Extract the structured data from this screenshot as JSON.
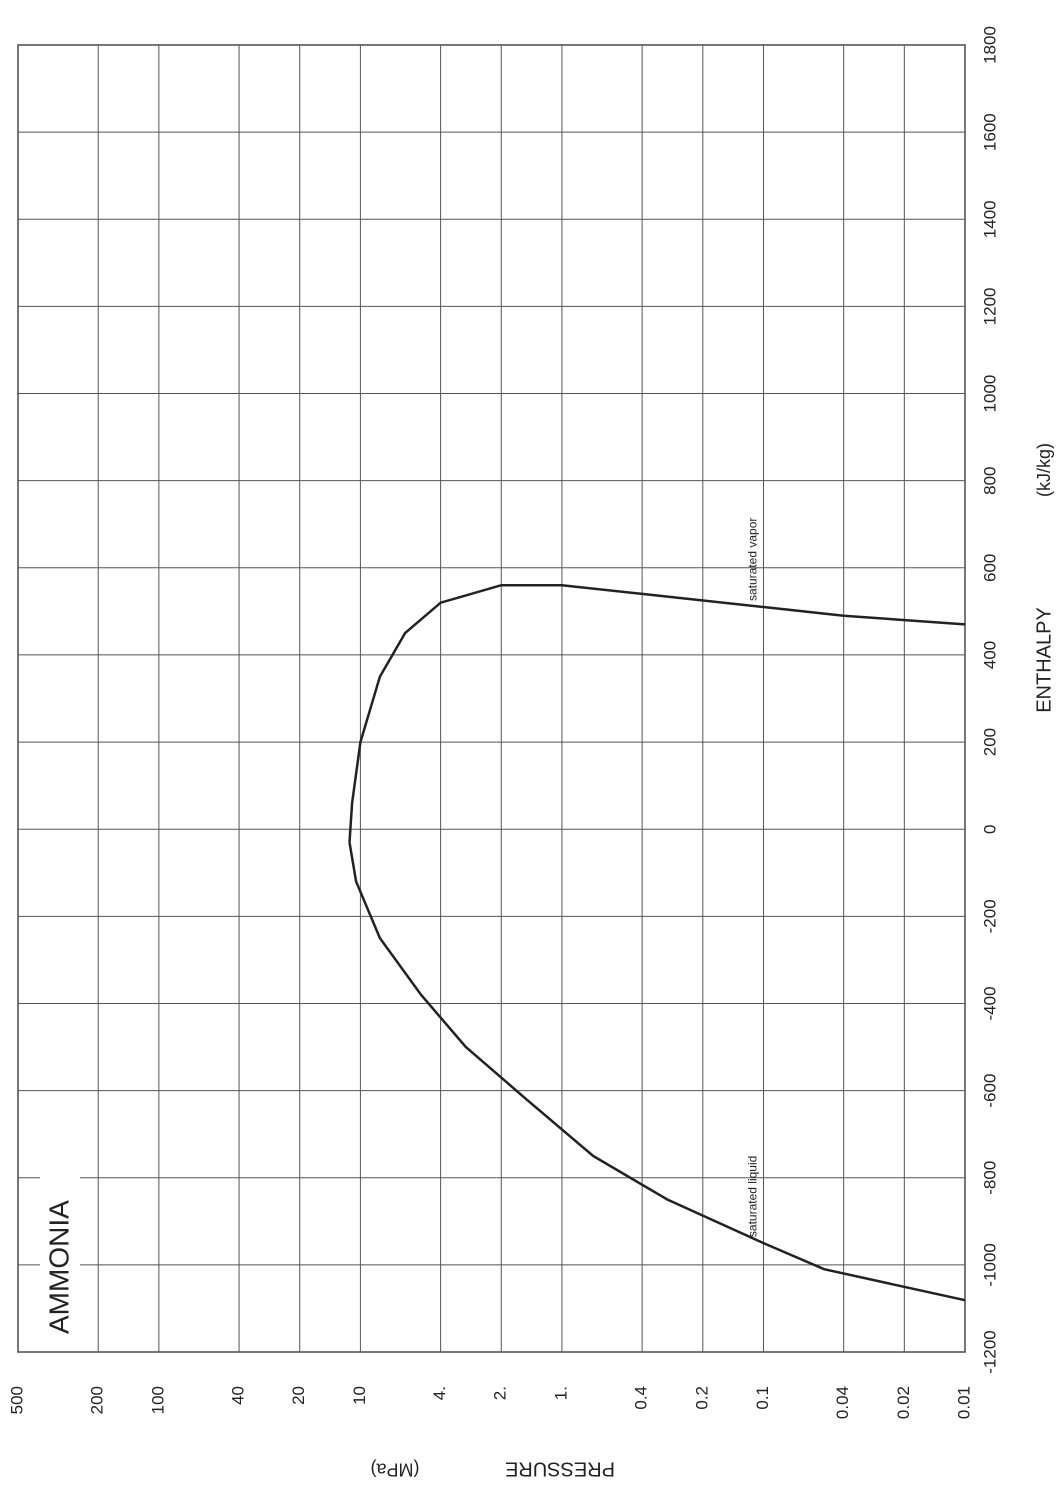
{
  "chart_data": {
    "type": "line",
    "title": "AMMONIA",
    "x_label": "ENTHALPY",
    "x_unit": "(kJ/kg)",
    "y_label": "PRESSURE",
    "y_unit": "(MPa)",
    "xlim": [
      -1200,
      1800
    ],
    "xticks": [
      -1200,
      -1000,
      -800,
      -600,
      -400,
      -200,
      0,
      200,
      400,
      600,
      800,
      1000,
      1200,
      1400,
      1600,
      1800
    ],
    "ylim": [
      0.01,
      500
    ],
    "ylog": true,
    "yticks": [
      500,
      200,
      100,
      40,
      20,
      10,
      {
        "value": 4,
        "label": "4."
      },
      {
        "value": 2,
        "label": "2."
      },
      {
        "value": 1,
        "label": "1."
      },
      0.4,
      0.2,
      0.1,
      0.04,
      0.02,
      0.01
    ],
    "grid": true,
    "series": [
      {
        "name": "saturated liquid",
        "color": "#222222",
        "x": [
          -1081,
          -1010,
          -950,
          -850,
          -750,
          -620,
          -500,
          -380,
          -250,
          -120,
          -30
        ],
        "values": [
          0.01,
          0.05,
          0.1,
          0.3,
          0.7,
          1.5,
          3,
          5,
          8,
          10.5,
          11.33
        ]
      },
      {
        "name": "saturated vapor",
        "color": "#222222",
        "x": [
          -30,
          60,
          200,
          350,
          450,
          520,
          560,
          560,
          540,
          510,
          490,
          470
        ],
        "values": [
          11.33,
          11,
          10,
          8,
          6,
          4,
          2,
          1,
          0.4,
          0.1,
          0.04,
          0.01
        ]
      }
    ]
  }
}
